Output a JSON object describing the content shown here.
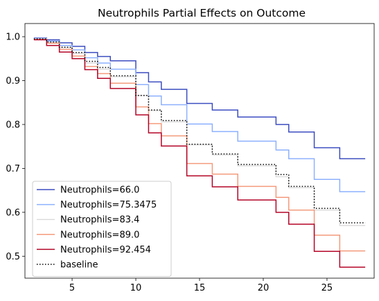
{
  "chart_data": {
    "type": "line",
    "step": true,
    "title": "Neutrophils Partial Effects on Outcome",
    "xlabel": "",
    "ylabel": "",
    "xlim": [
      1.3,
      28.7
    ],
    "ylim": [
      0.45,
      1.03
    ],
    "xticks": [
      5,
      10,
      15,
      20,
      25
    ],
    "yticks": [
      0.5,
      0.6,
      0.7,
      0.8,
      0.9,
      1.0
    ],
    "ytick_labels": [
      "0.5",
      "0.6",
      "0.7",
      "0.8",
      "0.9",
      "1.0"
    ],
    "grid": false,
    "legend": "lower-left",
    "x": [
      2,
      3,
      4,
      5,
      6,
      7,
      8,
      10,
      11,
      12,
      14,
      16,
      18,
      21,
      22,
      24,
      26,
      28
    ],
    "series": [
      {
        "name": "Neutrophils=66.0",
        "color": "#3b4cc0",
        "dash": "solid",
        "values": [
          0.997,
          0.993,
          0.986,
          0.978,
          0.964,
          0.955,
          0.945,
          0.918,
          0.897,
          0.88,
          0.848,
          0.833,
          0.817,
          0.8,
          0.783,
          0.747,
          0.722,
          0.722
        ]
      },
      {
        "name": "Neutrophils=75.3475",
        "color": "#8db0fe",
        "dash": "solid",
        "values": [
          0.996,
          0.99,
          0.98,
          0.97,
          0.952,
          0.94,
          0.926,
          0.891,
          0.865,
          0.845,
          0.801,
          0.784,
          0.762,
          0.742,
          0.722,
          0.675,
          0.647,
          0.647
        ]
      },
      {
        "name": "Neutrophils=83.4",
        "color": "#dddcdc",
        "dash": "solid",
        "values": [
          0.995,
          0.987,
          0.975,
          0.962,
          0.94,
          0.926,
          0.909,
          0.866,
          0.832,
          0.806,
          0.754,
          0.731,
          0.706,
          0.681,
          0.656,
          0.605,
          0.57,
          0.57
        ]
      },
      {
        "name": "Neutrophils=89.0",
        "color": "#f49a7b",
        "dash": "solid",
        "values": [
          0.994,
          0.985,
          0.971,
          0.956,
          0.932,
          0.916,
          0.894,
          0.84,
          0.802,
          0.774,
          0.711,
          0.687,
          0.659,
          0.634,
          0.605,
          0.548,
          0.512,
          0.512
        ]
      },
      {
        "name": "Neutrophils=92.454",
        "color": "#b40426",
        "dash": "solid",
        "values": [
          0.993,
          0.98,
          0.965,
          0.95,
          0.925,
          0.905,
          0.882,
          0.822,
          0.781,
          0.751,
          0.683,
          0.658,
          0.628,
          0.6,
          0.573,
          0.511,
          0.475,
          0.475
        ]
      },
      {
        "name": "baseline",
        "color": "#000000",
        "dash": "dotted",
        "values": [
          0.995,
          0.988,
          0.976,
          0.964,
          0.944,
          0.93,
          0.911,
          0.866,
          0.833,
          0.809,
          0.755,
          0.733,
          0.709,
          0.686,
          0.659,
          0.609,
          0.576,
          0.576
        ]
      }
    ]
  }
}
